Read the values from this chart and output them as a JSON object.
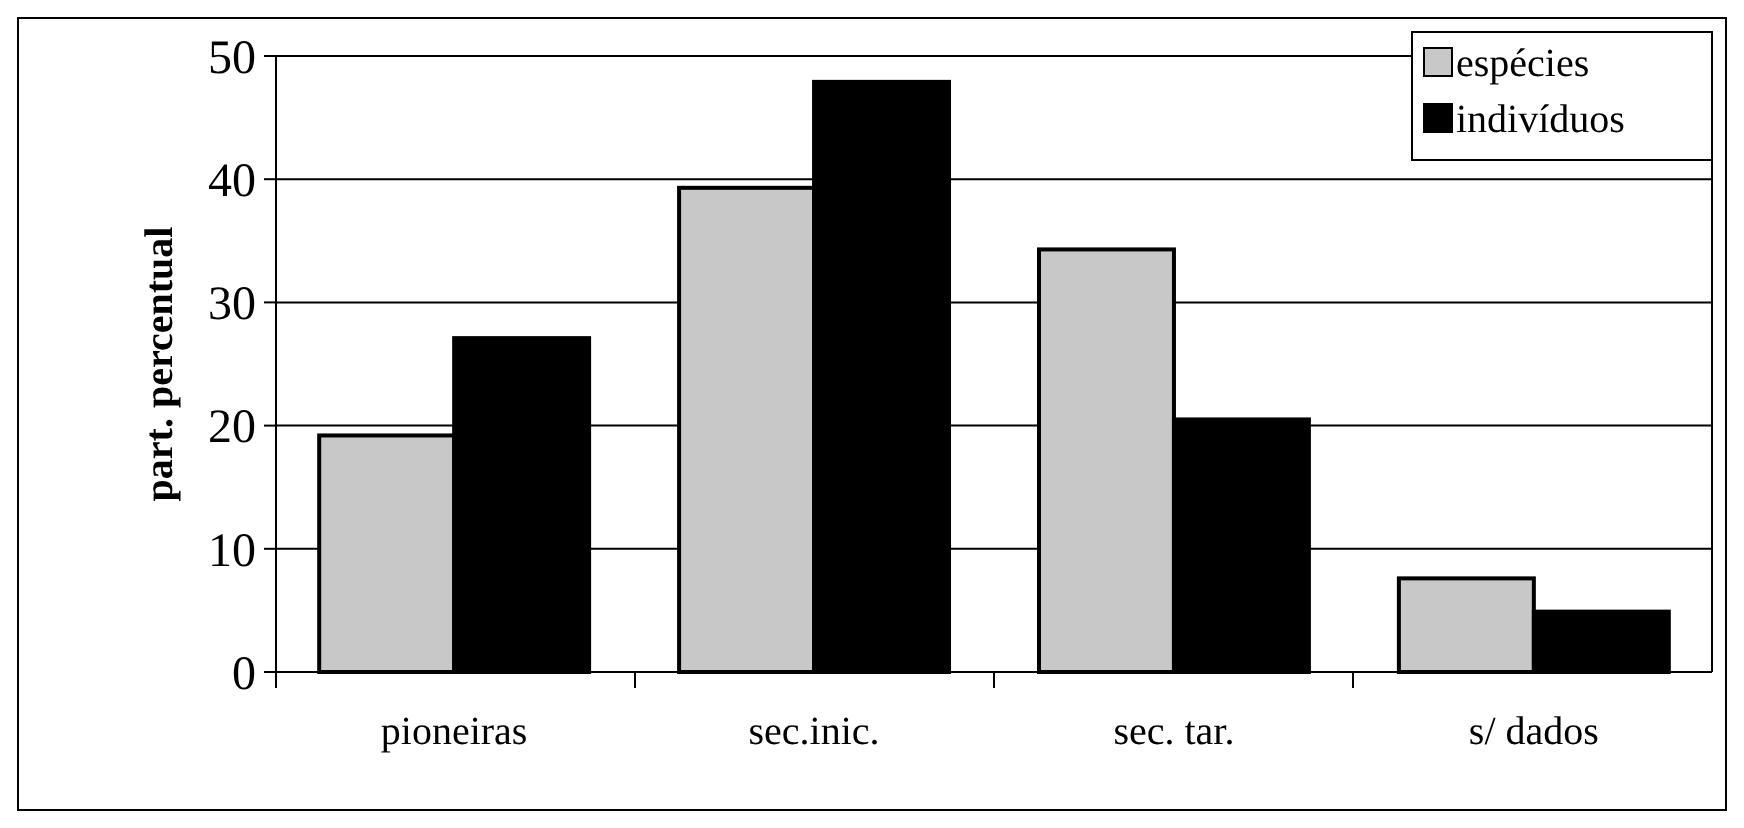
{
  "chart_data": {
    "type": "bar",
    "ylabel": "part. percentual",
    "categories": [
      "pioneiras",
      "sec.inic.",
      "sec. tar.",
      "s/ dados"
    ],
    "series": [
      {
        "name": "espécies",
        "color": "#c8c8c8",
        "values": [
          19.2,
          39.3,
          34.3,
          7.6
        ]
      },
      {
        "name": "indivíduos",
        "color": "#000000",
        "values": [
          27.1,
          47.9,
          20.5,
          4.9
        ]
      }
    ],
    "ylim": [
      0,
      50
    ],
    "yticks": [
      0,
      10,
      20,
      30,
      40,
      50
    ],
    "grid": "y",
    "legend": "top right"
  }
}
